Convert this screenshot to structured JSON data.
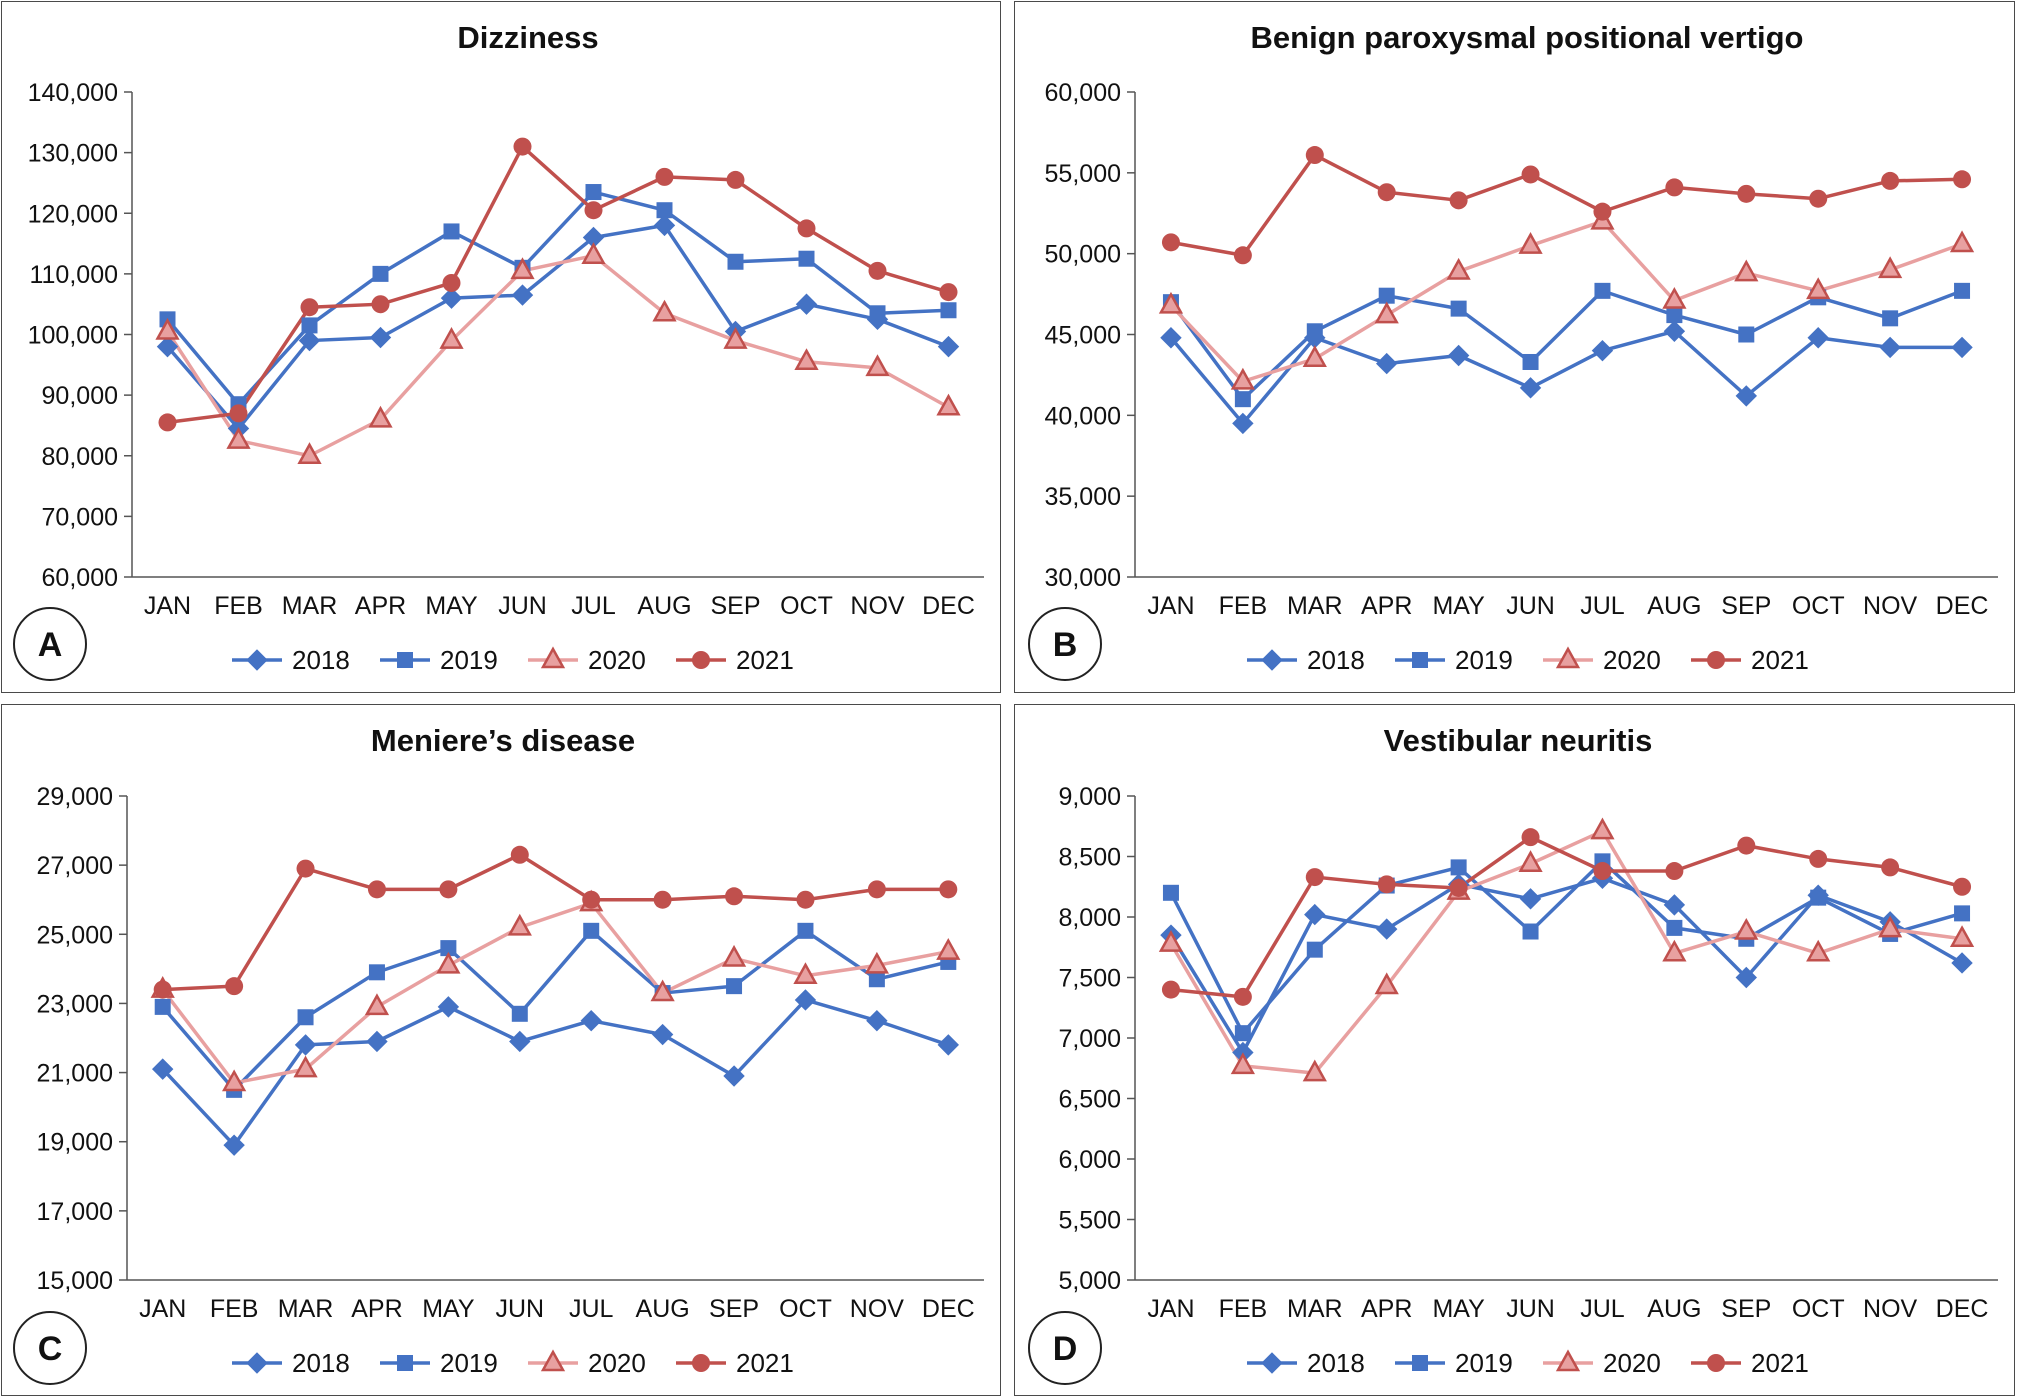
{
  "months": [
    "JAN",
    "FEB",
    "MAR",
    "APR",
    "MAY",
    "JUN",
    "JUL",
    "AUG",
    "SEP",
    "OCT",
    "NOV",
    "DEC"
  ],
  "colors": {
    "2018": "#4472c4",
    "2019": "#4472c4",
    "2020": "#e8a0a0",
    "2021": "#c0504d",
    "marker2020": "#c0504d"
  },
  "chart_data": [
    {
      "id": "A",
      "type": "line",
      "title": "Dizziness",
      "categories": [
        "JAN",
        "FEB",
        "MAR",
        "APR",
        "MAY",
        "JUN",
        "JUL",
        "AUG",
        "SEP",
        "OCT",
        "NOV",
        "DEC"
      ],
      "ylim": [
        60000,
        140000
      ],
      "ystep": 10000,
      "yticklabels": [
        "60,000",
        "70,000",
        "80,000",
        "90,000",
        "100,000",
        "110,000",
        "120,000",
        "130,000",
        "140,000"
      ],
      "series": [
        {
          "name": "2018",
          "marker": "diamond",
          "values": [
            98000,
            84500,
            99000,
            99500,
            106000,
            106500,
            116000,
            118000,
            100500,
            105000,
            102500,
            98000
          ]
        },
        {
          "name": "2019",
          "marker": "square",
          "values": [
            102500,
            88500,
            101500,
            110000,
            117000,
            111000,
            123500,
            120500,
            112000,
            112500,
            103500,
            104000
          ]
        },
        {
          "name": "2020",
          "marker": "triangle",
          "values": [
            100500,
            82500,
            80000,
            86000,
            99000,
            110500,
            113000,
            103500,
            99000,
            95500,
            94500,
            88000
          ]
        },
        {
          "name": "2021",
          "marker": "circle",
          "values": [
            85500,
            87000,
            104500,
            105000,
            108500,
            131000,
            120500,
            126000,
            125500,
            117500,
            110500,
            107000
          ]
        }
      ]
    },
    {
      "id": "B",
      "type": "line",
      "title": "Benign paroxysmal positional vertigo",
      "categories": [
        "JAN",
        "FEB",
        "MAR",
        "APR",
        "MAY",
        "JUN",
        "JUL",
        "AUG",
        "SEP",
        "OCT",
        "NOV",
        "DEC"
      ],
      "ylim": [
        30000,
        60000
      ],
      "ystep": 5000,
      "yticklabels": [
        "30,000",
        "35,000",
        "40,000",
        "45,000",
        "50,000",
        "55,000",
        "60,000"
      ],
      "series": [
        {
          "name": "2018",
          "marker": "diamond",
          "values": [
            44800,
            39500,
            44800,
            43200,
            43700,
            41700,
            44000,
            45200,
            41200,
            44800,
            44200,
            44200
          ]
        },
        {
          "name": "2019",
          "marker": "square",
          "values": [
            47000,
            41000,
            45200,
            47400,
            46600,
            43300,
            47700,
            46200,
            45000,
            47300,
            46000,
            47700
          ]
        },
        {
          "name": "2020",
          "marker": "triangle",
          "values": [
            46800,
            42100,
            43500,
            46200,
            48900,
            50500,
            52000,
            47100,
            48800,
            47700,
            49000,
            50600
          ]
        },
        {
          "name": "2021",
          "marker": "circle",
          "values": [
            50700,
            49900,
            56100,
            53800,
            53300,
            54900,
            52600,
            54100,
            53700,
            53400,
            54500,
            54600
          ]
        }
      ]
    },
    {
      "id": "C",
      "type": "line",
      "title": "Meniere’s disease",
      "categories": [
        "JAN",
        "FEB",
        "MAR",
        "APR",
        "MAY",
        "JUN",
        "JUL",
        "AUG",
        "SEP",
        "OCT",
        "NOV",
        "DEC"
      ],
      "ylim": [
        15000,
        29000
      ],
      "ystep": 2000,
      "yticklabels": [
        "15,000",
        "17,000",
        "19,000",
        "21,000",
        "23,000",
        "25,000",
        "27,000",
        "29,000"
      ],
      "series": [
        {
          "name": "2018",
          "marker": "diamond",
          "values": [
            21100,
            18900,
            21800,
            21900,
            22900,
            21900,
            22500,
            22100,
            20900,
            23100,
            22500,
            21800
          ]
        },
        {
          "name": "2019",
          "marker": "square",
          "values": [
            22900,
            20500,
            22600,
            23900,
            24600,
            22700,
            25100,
            23300,
            23500,
            25100,
            23700,
            24200
          ]
        },
        {
          "name": "2020",
          "marker": "triangle",
          "values": [
            23400,
            20700,
            21100,
            22900,
            24100,
            25200,
            25900,
            23300,
            24300,
            23800,
            24100,
            24500
          ]
        },
        {
          "name": "2021",
          "marker": "circle",
          "values": [
            23400,
            23500,
            26900,
            26300,
            26300,
            27300,
            26000,
            26000,
            26100,
            26000,
            26300,
            26300
          ]
        }
      ]
    },
    {
      "id": "D",
      "type": "line",
      "title": "Vestibular neuritis",
      "categories": [
        "JAN",
        "FEB",
        "MAR",
        "APR",
        "MAY",
        "JUN",
        "JUL",
        "AUG",
        "SEP",
        "OCT",
        "NOV",
        "DEC"
      ],
      "ylim": [
        5000,
        9000
      ],
      "ystep": 500,
      "yticklabels": [
        "5,000",
        "5,500",
        "6,000",
        "6,500",
        "7,000",
        "7,500",
        "8,000",
        "8,500",
        "9,000"
      ],
      "series": [
        {
          "name": "2018",
          "marker": "diamond",
          "values": [
            7850,
            6880,
            8020,
            7900,
            8270,
            8150,
            8320,
            8100,
            7500,
            8180,
            7960,
            7620
          ]
        },
        {
          "name": "2019",
          "marker": "square",
          "values": [
            8200,
            7040,
            7730,
            8260,
            8410,
            7880,
            8460,
            7910,
            7820,
            8160,
            7860,
            8030
          ]
        },
        {
          "name": "2020",
          "marker": "triangle",
          "values": [
            7780,
            6770,
            6710,
            7430,
            8210,
            8440,
            8710,
            7700,
            7880,
            7700,
            7900,
            7820
          ]
        },
        {
          "name": "2021",
          "marker": "circle",
          "values": [
            7400,
            7340,
            8330,
            8270,
            8240,
            8660,
            8380,
            8380,
            8590,
            8480,
            8410,
            8250
          ]
        }
      ]
    }
  ],
  "legend": [
    "2018",
    "2019",
    "2020",
    "2021"
  ]
}
